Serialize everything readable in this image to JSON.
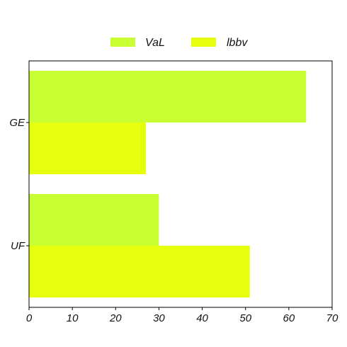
{
  "chart_data": {
    "type": "bar",
    "orientation": "horizontal",
    "categories": [
      "GE",
      "UF"
    ],
    "series": [
      {
        "name": "VaL",
        "color": "#c8ff33",
        "values": [
          64,
          30
        ]
      },
      {
        "name": "lbbv",
        "color": "#e6ff0d",
        "values": [
          27,
          51
        ]
      }
    ],
    "xlim": [
      0,
      70
    ],
    "xticks": [
      0,
      10,
      20,
      30,
      40,
      50,
      60,
      70
    ],
    "legend_position": "top-center",
    "grid": false
  }
}
